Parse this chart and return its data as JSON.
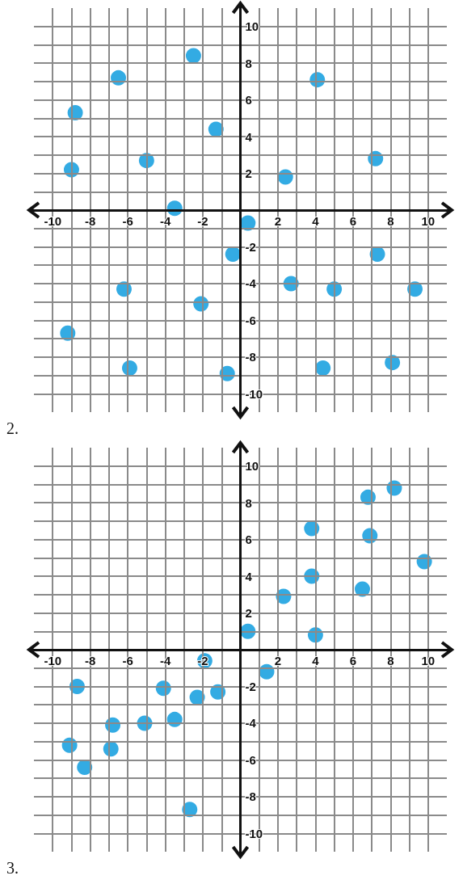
{
  "chart_data": [
    {
      "type": "scatter",
      "annotations": [
        "2."
      ],
      "xlim": [
        -11,
        11
      ],
      "ylim": [
        -11,
        11
      ],
      "xticks": [
        -10,
        -8,
        -6,
        -4,
        -2,
        2,
        4,
        6,
        8,
        10
      ],
      "yticks": [
        -10,
        -8,
        -6,
        -4,
        -2,
        2,
        4,
        6,
        8,
        10
      ],
      "grid": true,
      "marker": "circle",
      "series": [
        {
          "color": "#0096dc",
          "x": [
            -2.5,
            -6.5,
            -8.8,
            -1.3,
            -9,
            -5,
            -3.5,
            2.4,
            4.1,
            7.2,
            0.4,
            -0.4,
            7.3,
            -6.2,
            -2.1,
            2.7,
            5.0,
            9.3,
            -9.2,
            -5.9,
            -0.7,
            4.4,
            8.1
          ],
          "values": [
            8.4,
            7.2,
            5.3,
            4.4,
            2.2,
            2.7,
            0.1,
            1.8,
            7.1,
            2.8,
            -0.7,
            -2.4,
            -2.4,
            -4.3,
            -5.1,
            -4.0,
            -4.3,
            -4.3,
            -6.7,
            -8.6,
            -8.9,
            -8.6,
            -8.3
          ]
        }
      ]
    },
    {
      "type": "scatter",
      "annotations": [
        "3."
      ],
      "xlim": [
        -11,
        11
      ],
      "ylim": [
        -11,
        11
      ],
      "xticks": [
        -10,
        -8,
        -6,
        -4,
        -2,
        2,
        4,
        6,
        8,
        10
      ],
      "yticks": [
        -10,
        -8,
        -6,
        -4,
        -2,
        2,
        4,
        6,
        8,
        10
      ],
      "grid": true,
      "marker": "circle",
      "series": [
        {
          "color": "#0096dc",
          "x": [
            8.2,
            6.8,
            3.8,
            6.9,
            9.8,
            3.8,
            2.3,
            6.5,
            0.4,
            4.0,
            -1.9,
            1.4,
            -8.7,
            -4.1,
            -1.2,
            -2.3,
            -6.8,
            -5.1,
            -3.5,
            -9.1,
            -6.9,
            -8.3,
            -2.7
          ],
          "values": [
            8.8,
            8.3,
            6.6,
            6.2,
            4.8,
            4.0,
            2.9,
            3.3,
            1.0,
            0.8,
            -0.6,
            -1.2,
            -2.0,
            -2.1,
            -2.3,
            -2.6,
            -4.1,
            -4.0,
            -3.8,
            -5.2,
            -5.4,
            -6.4,
            -8.7
          ]
        }
      ]
    }
  ]
}
